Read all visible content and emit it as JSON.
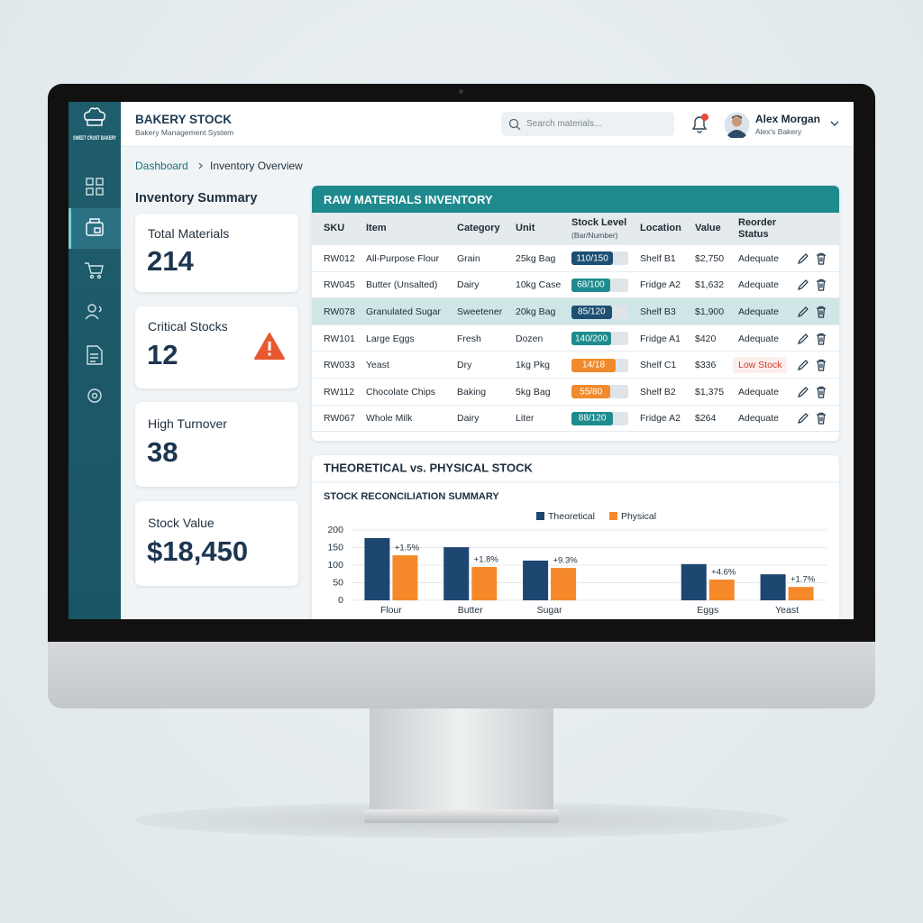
{
  "sidebar": {
    "brand": "SWEET CRUST BAKERY"
  },
  "header": {
    "title": "BAKERY STOCK",
    "subtitle": "Bakery Management System",
    "search_placeholder": "Search materials...",
    "user_name": "Alex Morgan",
    "user_org": "Alex's Bakery"
  },
  "breadcrumb": [
    "Dashboard",
    "Inventory Overview"
  ],
  "summary": {
    "title": "Inventory Summary",
    "cards": [
      {
        "label": "Total Materials",
        "value": "214"
      },
      {
        "label": "Critical Stocks",
        "value": "12"
      },
      {
        "label": "High Turnover",
        "value": "38"
      },
      {
        "label": "Stock Value",
        "value": "$18,450"
      }
    ]
  },
  "table": {
    "title": "RAW MATERIALS INVENTORY",
    "columns": [
      "SKU",
      "Item",
      "Category",
      "Unit",
      "Stock Level",
      "Location",
      "Value",
      "Reorder Status"
    ],
    "stock_level_note": "(Bar/Number)",
    "selected_row": 2,
    "rows": [
      {
        "sku": "RW012",
        "item": "All-Purpose Flour",
        "category": "Grain",
        "unit": "25kg Bag",
        "stock": 110,
        "capacity": 150,
        "stock_label": "110/150",
        "bar_color": "#1d4f73",
        "location": "Shelf B1",
        "value": "$2,750",
        "status": "Adequate"
      },
      {
        "sku": "RW045",
        "item": "Butter (Unsalted)",
        "category": "Dairy",
        "unit": "10kg Case",
        "stock": 68,
        "capacity": 100,
        "stock_label": "68/100",
        "bar_color": "#1e8c8f",
        "location": "Fridge A2",
        "value": "$1,632",
        "status": "Adequate"
      },
      {
        "sku": "RW078",
        "item": "Granulated Sugar",
        "category": "Sweetener",
        "unit": "20kg Bag",
        "stock": 85,
        "capacity": 120,
        "stock_label": "85/120",
        "bar_color": "#1d4f73",
        "location": "Shelf B3",
        "value": "$1,900",
        "status": "Adequate"
      },
      {
        "sku": "RW101",
        "item": "Large Eggs",
        "category": "Fresh",
        "unit": "Dozen",
        "stock": 140,
        "capacity": 200,
        "stock_label": "140/200",
        "bar_color": "#1e8c8f",
        "location": "Fridge A1",
        "value": "$420",
        "status": "Adequate"
      },
      {
        "sku": "RW033",
        "item": "Yeast",
        "category": "Dry",
        "unit": "1kg Pkg",
        "stock": 14,
        "capacity": 18,
        "stock_label": "14/18",
        "bar_color": "#f08a2c",
        "location": "Shelf C1",
        "value": "$336",
        "status": "Low Stock",
        "status_alert": true
      },
      {
        "sku": "RW112",
        "item": "Chocolate Chips",
        "category": "Baking",
        "unit": "5kg Bag",
        "stock": 55,
        "capacity": 80,
        "stock_label": "55/80",
        "bar_color": "#f08a2c",
        "location": "Shelf B2",
        "value": "$1,375",
        "status": "Adequate"
      },
      {
        "sku": "RW067",
        "item": "Whole Milk",
        "category": "Dairy",
        "unit": "Liter",
        "stock": 88,
        "capacity": 120,
        "stock_label": "88/120",
        "bar_color": "#1e8c8f",
        "location": "Fridge A2",
        "value": "$264",
        "status": "Adequate"
      }
    ]
  },
  "chart_data": {
    "type": "bar",
    "title": "THEORETICAL vs. PHYSICAL STOCK",
    "subtitle": "STOCK RECONCILIATION SUMMARY",
    "categories": [
      "Flour",
      "Butter",
      "Sugar",
      null,
      "Eggs",
      "Yeast"
    ],
    "series": [
      {
        "name": "Theoretical",
        "color": "#1d4670",
        "values": [
          177,
          151,
          113,
          null,
          103,
          74
        ]
      },
      {
        "name": "Physical",
        "color": "#f5892a",
        "values": [
          128,
          95,
          92,
          null,
          59,
          38
        ]
      }
    ],
    "annotations": [
      "+1.5%",
      "+1.8%",
      "+9.3%",
      null,
      "+4.6%",
      "+1.7%"
    ],
    "ylim": [
      0,
      200
    ],
    "yticks": [
      0,
      50,
      100,
      150,
      200
    ],
    "grid": true,
    "legend": "top"
  }
}
